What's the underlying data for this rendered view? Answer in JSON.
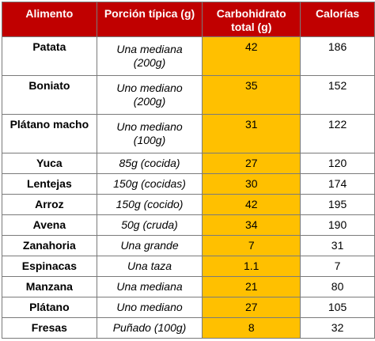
{
  "headers": {
    "food": "Alimento",
    "portion": "Porción típica (g)",
    "carbs": "Carbohidrato total (g)",
    "calories": "Calorías"
  },
  "rows": [
    {
      "food": "Patata",
      "portion": "Una mediana (200g)",
      "carbs": "42",
      "calories": "186"
    },
    {
      "food": "Boniato",
      "portion": "Uno mediano (200g)",
      "carbs": "35",
      "calories": "152"
    },
    {
      "food": "Plátano macho",
      "portion": "Uno mediano (100g)",
      "carbs": "31",
      "calories": "122"
    },
    {
      "food": "Yuca",
      "portion": "85g (cocida)",
      "carbs": "27",
      "calories": "120"
    },
    {
      "food": "Lentejas",
      "portion": "150g (cocidas)",
      "carbs": "30",
      "calories": "174"
    },
    {
      "food": "Arroz",
      "portion": "150g (cocido)",
      "carbs": "42",
      "calories": "195"
    },
    {
      "food": "Avena",
      "portion": "50g (cruda)",
      "carbs": "34",
      "calories": "190"
    },
    {
      "food": "Zanahoria",
      "portion": "Una grande",
      "carbs": "7",
      "calories": "31"
    },
    {
      "food": "Espinacas",
      "portion": "Una taza",
      "carbs": "1.1",
      "calories": "7"
    },
    {
      "food": "Manzana",
      "portion": "Una mediana",
      "carbs": "21",
      "calories": "80"
    },
    {
      "food": "Plátano",
      "portion": "Uno mediano",
      "carbs": "27",
      "calories": "105"
    },
    {
      "food": "Fresas",
      "portion": "Puñado (100g)",
      "carbs": "8",
      "calories": "32"
    }
  ],
  "colors": {
    "header_bg": "#c00000",
    "header_text": "#ffffff",
    "carb_highlight": "#ffc000",
    "border": "#7a7a7a"
  }
}
